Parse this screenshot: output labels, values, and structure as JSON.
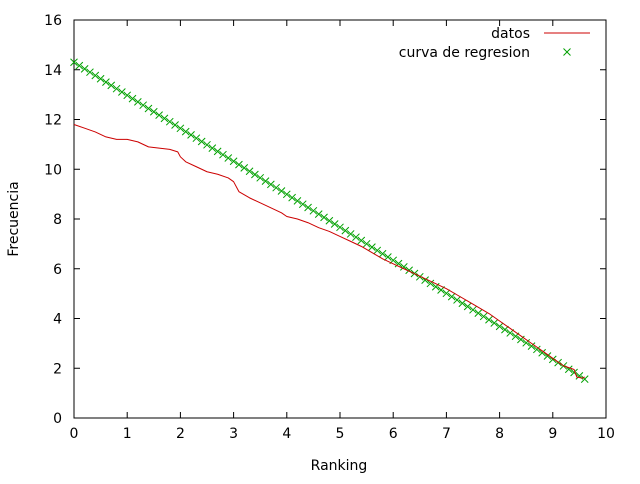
{
  "chart_data": {
    "type": "line",
    "title": "",
    "xlabel": "Ranking",
    "ylabel": "Frecuencia",
    "xlim": [
      0,
      10
    ],
    "ylim": [
      0,
      16
    ],
    "xticks": [
      0,
      1,
      2,
      3,
      4,
      5,
      6,
      7,
      8,
      9,
      10
    ],
    "yticks": [
      0,
      2,
      4,
      6,
      8,
      10,
      12,
      14,
      16
    ],
    "grid": false,
    "legend_position": "top-right",
    "series": [
      {
        "name": "datos",
        "style": "line",
        "color": "#cc0000",
        "x": [
          0,
          0.2,
          0.4,
          0.6,
          0.8,
          1.0,
          1.2,
          1.4,
          1.6,
          1.8,
          1.95,
          2.0,
          2.1,
          2.3,
          2.5,
          2.7,
          2.9,
          3.0,
          3.1,
          3.3,
          3.5,
          3.7,
          3.9,
          4.0,
          4.2,
          4.4,
          4.6,
          4.8,
          5.0,
          5.2,
          5.4,
          5.6,
          5.8,
          6.0,
          6.2,
          6.4,
          6.6,
          6.8,
          7.0,
          7.2,
          7.4,
          7.6,
          7.8,
          8.0,
          8.2,
          8.4,
          8.6,
          8.8,
          9.0,
          9.2,
          9.4,
          9.45,
          9.55,
          9.6
        ],
        "y": [
          11.8,
          11.65,
          11.5,
          11.3,
          11.2,
          11.2,
          11.1,
          10.9,
          10.85,
          10.8,
          10.7,
          10.5,
          10.3,
          10.1,
          9.9,
          9.8,
          9.65,
          9.5,
          9.1,
          8.85,
          8.65,
          8.45,
          8.25,
          8.1,
          8.0,
          7.85,
          7.65,
          7.5,
          7.3,
          7.1,
          6.9,
          6.65,
          6.4,
          6.2,
          6.0,
          5.8,
          5.6,
          5.4,
          5.2,
          4.95,
          4.7,
          4.45,
          4.2,
          3.9,
          3.6,
          3.3,
          3.0,
          2.7,
          2.4,
          2.1,
          1.95,
          1.65,
          1.6,
          1.65
        ]
      },
      {
        "name": "curva de regresion",
        "style": "points",
        "marker": "x",
        "color": "#00a000",
        "x": [
          0,
          0.1,
          0.2,
          0.3,
          0.4,
          0.5,
          0.6,
          0.7,
          0.8,
          0.9,
          1.0,
          1.1,
          1.2,
          1.3,
          1.4,
          1.5,
          1.6,
          1.7,
          1.8,
          1.9,
          2.0,
          2.1,
          2.2,
          2.3,
          2.4,
          2.5,
          2.6,
          2.7,
          2.8,
          2.9,
          3.0,
          3.1,
          3.2,
          3.3,
          3.4,
          3.5,
          3.6,
          3.7,
          3.8,
          3.9,
          4.0,
          4.1,
          4.2,
          4.3,
          4.4,
          4.5,
          4.6,
          4.7,
          4.8,
          4.9,
          5.0,
          5.1,
          5.2,
          5.3,
          5.4,
          5.5,
          5.6,
          5.7,
          5.8,
          5.9,
          6.0,
          6.1,
          6.2,
          6.3,
          6.4,
          6.5,
          6.6,
          6.7,
          6.8,
          6.9,
          7.0,
          7.1,
          7.2,
          7.3,
          7.4,
          7.5,
          7.6,
          7.7,
          7.8,
          7.9,
          8.0,
          8.1,
          8.2,
          8.3,
          8.4,
          8.5,
          8.6,
          8.7,
          8.8,
          8.9,
          9.0,
          9.1,
          9.2,
          9.3,
          9.4,
          9.5,
          9.6
        ],
        "y": [
          14.3,
          14.167,
          14.035,
          13.902,
          13.769,
          13.637,
          13.504,
          13.371,
          13.239,
          13.106,
          12.973,
          12.84,
          12.708,
          12.575,
          12.442,
          12.31,
          12.177,
          12.044,
          11.912,
          11.779,
          11.646,
          11.514,
          11.381,
          11.248,
          11.116,
          10.983,
          10.85,
          10.718,
          10.585,
          10.452,
          10.32,
          10.187,
          10.054,
          9.921,
          9.789,
          9.656,
          9.523,
          9.391,
          9.258,
          9.125,
          8.993,
          8.86,
          8.727,
          8.595,
          8.462,
          8.329,
          8.197,
          8.064,
          7.931,
          7.799,
          7.666,
          7.533,
          7.4,
          7.268,
          7.135,
          7.002,
          6.87,
          6.737,
          6.604,
          6.472,
          6.339,
          6.206,
          6.074,
          5.941,
          5.808,
          5.676,
          5.543,
          5.41,
          5.278,
          5.145,
          5.012,
          4.879,
          4.747,
          4.614,
          4.481,
          4.349,
          4.216,
          4.083,
          3.951,
          3.818,
          3.685,
          3.553,
          3.42,
          3.287,
          3.155,
          3.022,
          2.889,
          2.757,
          2.624,
          2.491,
          2.358,
          2.226,
          2.093,
          1.96,
          1.828,
          1.695,
          1.562
        ]
      }
    ]
  }
}
